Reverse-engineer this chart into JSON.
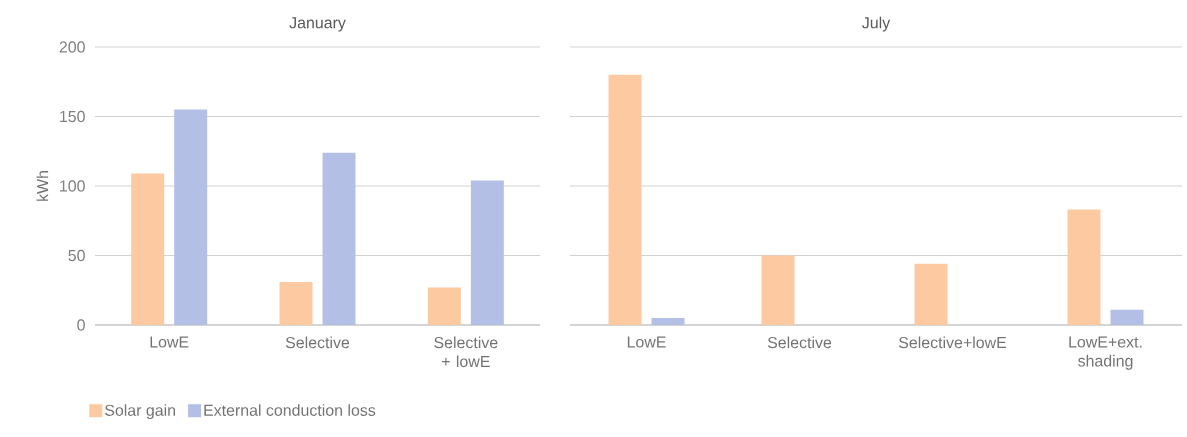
{
  "chart_data": [
    {
      "type": "bar",
      "title": "January",
      "ylabel": "kWh",
      "categories": [
        "LowE",
        "Selective",
        "Selective + lowE"
      ],
      "series": [
        {
          "name": "Solar gain",
          "color": "#fdc9a1",
          "values": [
            109,
            31,
            27
          ]
        },
        {
          "name": "External conduction loss",
          "color": "#b4bfe6",
          "values": [
            155,
            124,
            104
          ]
        }
      ],
      "ylim": [
        0,
        200
      ],
      "yticks": [
        0,
        50,
        100,
        150,
        200
      ],
      "grid": "y",
      "legend": "bottom"
    },
    {
      "type": "bar",
      "title": "July",
      "categories": [
        "LowE",
        "Selective",
        "Selective+lowE",
        "LowE+ext. shading"
      ],
      "series": [
        {
          "color": "#fdc9a1",
          "values": [
            180,
            50,
            44,
            83
          ]
        },
        {
          "color": "#b4bfe6",
          "values": [
            5,
            0,
            0,
            11
          ]
        }
      ],
      "ylim": [
        0,
        200
      ],
      "yticks": [
        0,
        50,
        100,
        150,
        200
      ],
      "grid": "y",
      "tick_labels": "x"
    }
  ]
}
